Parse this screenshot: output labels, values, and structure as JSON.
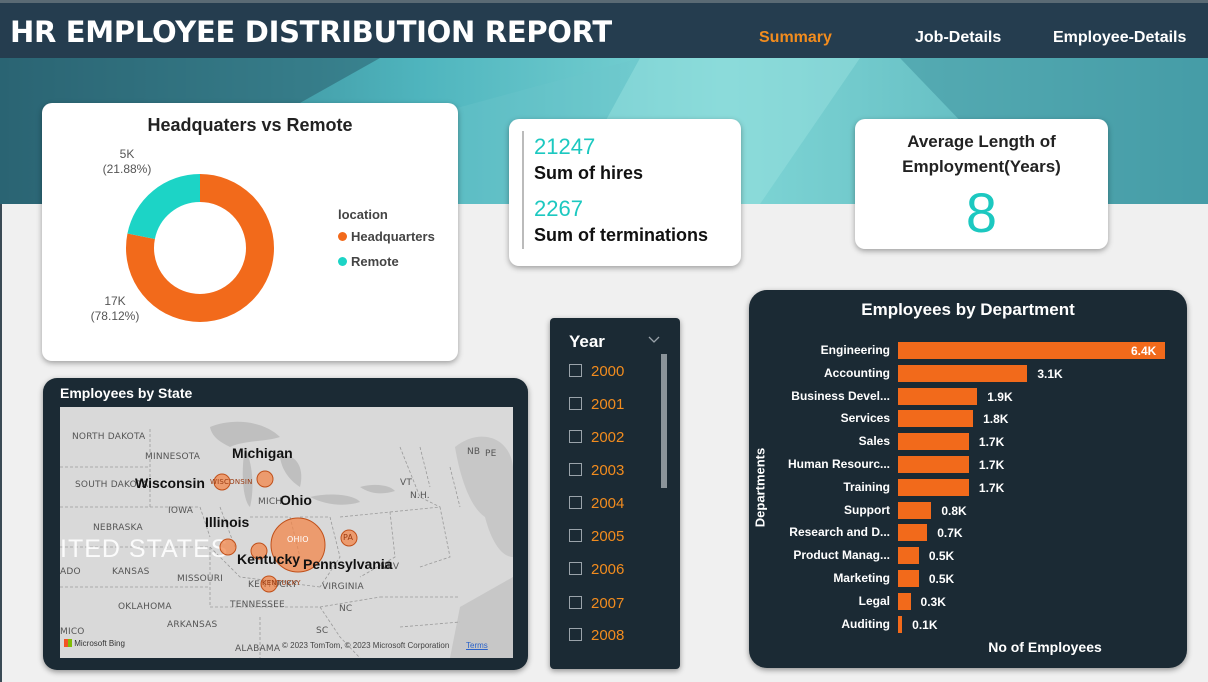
{
  "header": {
    "title": "HR EMPLOYEE DISTRIBUTION REPORT",
    "nav": [
      "Summary",
      "Job-Details",
      "Employee-Details"
    ],
    "active_nav": "Summary"
  },
  "hq_remote": {
    "title": "Headquaters vs Remote",
    "legend_title": "location",
    "legend": [
      "Headquarters",
      "Remote"
    ],
    "colors": {
      "Headquarters": "#f26a1b",
      "Remote": "#1cd4c6"
    },
    "remote_value": "5K",
    "remote_pct": "(21.88%)",
    "hq_value": "17K",
    "hq_pct": "(78.12%)",
    "remote_fraction": 0.2188
  },
  "kpi": {
    "hires_value": "21247",
    "hires_label": "Sum of hires",
    "terms_value": "2267",
    "terms_label": "Sum of terminations"
  },
  "avg_length": {
    "title_line1": "Average Length of",
    "title_line2": "Employment(Years)",
    "value": "8"
  },
  "map": {
    "title": "Employees by State",
    "state_labels_small": [
      "NORTH DAKOTA",
      "MINNESOTA",
      "SOUTH DAKOTA",
      "IOWA",
      "NEBRASKA",
      "KANSAS",
      "MISSOURI",
      "OKLAHOMA",
      "ARKANSAS",
      "TENNESSEE",
      "KENTUCKY",
      "VIRGINIA",
      "NC",
      "SC",
      "ALABAMA",
      "MICH",
      "VT",
      "N.H.",
      "NB",
      "PE",
      "ADO",
      "NEV",
      "MICO"
    ],
    "state_labels_big": [
      "Michigan",
      "Wisconsin",
      "Ohio",
      "Illinois",
      "Kentucky",
      "Pennsylvania"
    ],
    "watermark": "ITED STATES",
    "bubble_tags": [
      "WISCONSIN",
      "OHIO",
      "PA",
      "KENTUCKY"
    ],
    "attribution": "© 2023 TomTom, © 2023 Microsoft Corporation",
    "terms": "Terms",
    "bing": "Microsoft Bing"
  },
  "slicer": {
    "title": "Year",
    "years": [
      "2000",
      "2001",
      "2002",
      "2003",
      "2004",
      "2005",
      "2006",
      "2007",
      "2008"
    ]
  },
  "chart_data": {
    "type": "bar",
    "orientation": "horizontal",
    "title": "Employees by Department",
    "xlabel": "No of Employees",
    "ylabel": "Departments",
    "categories": [
      "Engineering",
      "Accounting",
      "Business Devel...",
      "Services",
      "Sales",
      "Human Resourc...",
      "Training",
      "Support",
      "Research and D...",
      "Product Manag...",
      "Marketing",
      "Legal",
      "Auditing"
    ],
    "values": [
      6400,
      3100,
      1900,
      1800,
      1700,
      1700,
      1700,
      800,
      700,
      500,
      500,
      300,
      100
    ],
    "data_labels": [
      "6.4K",
      "3.1K",
      "1.9K",
      "1.8K",
      "1.7K",
      "1.7K",
      "1.7K",
      "0.8K",
      "0.7K",
      "0.5K",
      "0.5K",
      "0.3K",
      "0.1K"
    ],
    "xlim": [
      0,
      6400
    ],
    "color": "#f26a1b"
  }
}
